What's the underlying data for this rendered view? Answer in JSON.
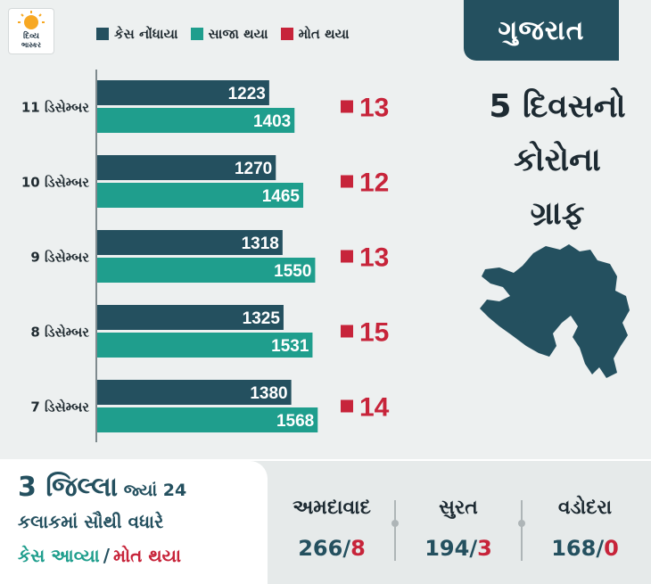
{
  "logo": {
    "line1": "દિવ્ય",
    "line2": "ભાસ્કર"
  },
  "colors": {
    "cases": "#24505f",
    "recovered": "#1f9e8d",
    "deaths": "#c7243a"
  },
  "state": "ગુજરાત",
  "right_title": [
    "5 દિવસનો",
    "કોરોના",
    "ગ્રાફ"
  ],
  "chart_data": {
    "type": "bar",
    "orientation": "horizontal",
    "legend": [
      "કેસ નોંધાયા",
      "સાજા થયા",
      "મોત થયા"
    ],
    "legend_position": "top",
    "categories": [
      "11 ડિસેમ્બર",
      "10 ડિસેમ્બર",
      "9 ડિસેમ્બર",
      "8 ડિસેમ્બર",
      "7 ડિસેમ્બર"
    ],
    "series": [
      {
        "name": "કેસ નોંધાયા",
        "values": [
          1223,
          1270,
          1318,
          1325,
          1380
        ]
      },
      {
        "name": "સાજા થયા",
        "values": [
          1403,
          1465,
          1550,
          1531,
          1568
        ]
      },
      {
        "name": "મોત થયા",
        "values": [
          13,
          12,
          13,
          15,
          14
        ]
      }
    ]
  },
  "bottom": {
    "line1_big": "3 જિલ્લા",
    "line1_small": " જ્યાં 24",
    "line2": "કલાકમાં સૌથી વધારે",
    "cases_label": "કેસ આવ્યા",
    "separator": "/",
    "deaths_label": "મોત થયા",
    "slash": "/",
    "cities": [
      {
        "name": "અમદાવાદ",
        "cases": "266",
        "deaths": "8"
      },
      {
        "name": "સુરત",
        "cases": "194",
        "deaths": "3"
      },
      {
        "name": "વડોદરા",
        "cases": "168",
        "deaths": "0"
      }
    ]
  }
}
